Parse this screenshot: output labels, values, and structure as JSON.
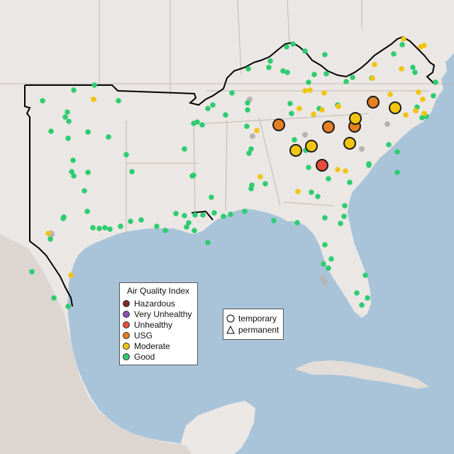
{
  "legend": {
    "title": "Air Quality Index",
    "categories": [
      {
        "label": "Hazardous",
        "color": "#7e2a22"
      },
      {
        "label": "Very Unhealthy",
        "color": "#8e4fb0"
      },
      {
        "label": "Unhealthy",
        "color": "#e74c3c"
      },
      {
        "label": "USG",
        "color": "#e67e22"
      },
      {
        "label": "Moderate",
        "color": "#f1c40f"
      },
      {
        "label": "Good",
        "color": "#2ecc71"
      }
    ]
  },
  "shape_legend": {
    "temporary": "temporary",
    "permanent": "permanent"
  },
  "colors": {
    "water": "#a9c4d9",
    "land": "#ebe7e4",
    "deep_land": "#d9d3ce",
    "boundary": "#000000",
    "state_lines": "#b8b2ad",
    "no_data": "#b5b5b5"
  },
  "monitors": {
    "large": [
      {
        "category": "USG",
        "label": "monitor-usg"
      },
      {
        "category": "USG",
        "label": "monitor-usg"
      },
      {
        "category": "USG",
        "label": "monitor-usg"
      },
      {
        "category": "USG",
        "label": "monitor-usg"
      },
      {
        "category": "Moderate",
        "label": "monitor-moderate"
      },
      {
        "category": "Moderate",
        "label": "monitor-moderate"
      },
      {
        "category": "Moderate",
        "label": "monitor-moderate"
      },
      {
        "category": "Moderate",
        "label": "monitor-moderate"
      },
      {
        "category": "Unhealthy",
        "label": "monitor-unhealthy"
      }
    ]
  }
}
